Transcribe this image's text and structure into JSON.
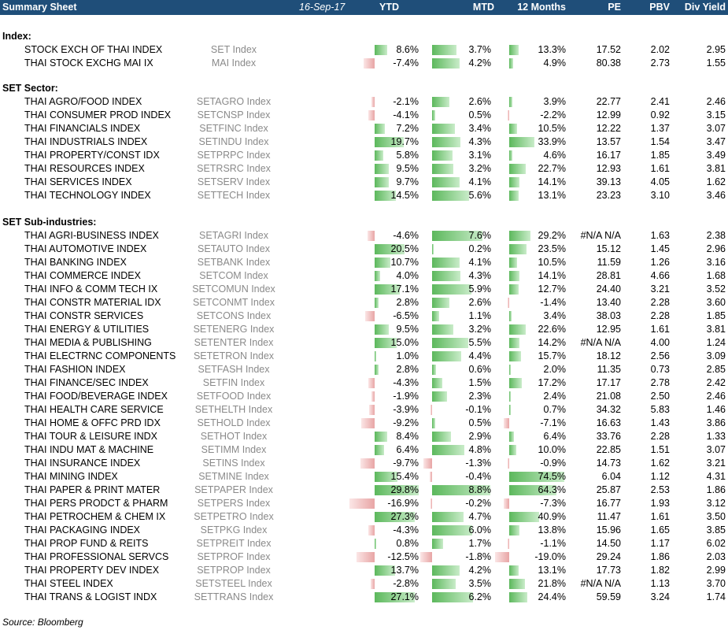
{
  "header": {
    "title": "Summary Sheet",
    "date": "16-Sep-17",
    "ytd": "YTD",
    "mtd": "MTD",
    "m12": "12 Months",
    "pe": "PE",
    "pbv": "PBV",
    "dy": "Div Yield"
  },
  "footer": "Source: Bloomberg",
  "sections": [
    {
      "label": "Index:",
      "rows": [
        {
          "name": "STOCK EXCH OF THAI INDEX",
          "code": "SET Index",
          "ytd": "8.6%",
          "mtd": "3.7%",
          "m12": "13.3%",
          "pe": "17.52",
          "pbv": "2.02",
          "dy": "2.95"
        },
        {
          "name": "THAI STOCK EXCHG MAI IX",
          "code": "MAI Index",
          "ytd": "-7.4%",
          "mtd": "4.2%",
          "m12": "4.9%",
          "pe": "80.38",
          "pbv": "2.73",
          "dy": "1.55"
        }
      ]
    },
    {
      "label": "SET Sector:",
      "rows": [
        {
          "name": "THAI AGRO/FOOD INDEX",
          "code": "SETAGRO Index",
          "ytd": "-2.1%",
          "mtd": "2.6%",
          "m12": "3.9%",
          "pe": "22.77",
          "pbv": "2.41",
          "dy": "2.46"
        },
        {
          "name": "THAI CONSUMER PROD INDEX",
          "code": "SETCNSP Index",
          "ytd": "-4.1%",
          "mtd": "0.5%",
          "m12": "-2.2%",
          "pe": "12.99",
          "pbv": "0.92",
          "dy": "3.15"
        },
        {
          "name": "THAI FINANCIALS INDEX",
          "code": "SETFINC Index",
          "ytd": "7.2%",
          "mtd": "3.4%",
          "m12": "10.5%",
          "pe": "12.22",
          "pbv": "1.37",
          "dy": "3.07"
        },
        {
          "name": "THAI INDUSTRIALS INDEX",
          "code": "SETINDU Index",
          "ytd": "19.7%",
          "mtd": "4.3%",
          "m12": "33.9%",
          "pe": "13.57",
          "pbv": "1.54",
          "dy": "3.47"
        },
        {
          "name": "THAI PROPERTY/CONST IDX",
          "code": "SETPRPC Index",
          "ytd": "5.8%",
          "mtd": "3.1%",
          "m12": "4.6%",
          "pe": "16.17",
          "pbv": "1.85",
          "dy": "3.49"
        },
        {
          "name": "THAI RESOURCES INDEX",
          "code": "SETRSRC Index",
          "ytd": "9.5%",
          "mtd": "3.2%",
          "m12": "22.7%",
          "pe": "12.93",
          "pbv": "1.61",
          "dy": "3.81"
        },
        {
          "name": "THAI SERVICES INDEX",
          "code": "SETSERV Index",
          "ytd": "9.7%",
          "mtd": "4.1%",
          "m12": "14.1%",
          "pe": "39.13",
          "pbv": "4.05",
          "dy": "1.62"
        },
        {
          "name": "THAI TECHNOLOGY INDEX",
          "code": "SETTECH Index",
          "ytd": "14.5%",
          "mtd": "5.6%",
          "m12": "13.1%",
          "pe": "23.23",
          "pbv": "3.10",
          "dy": "3.46"
        }
      ]
    },
    {
      "label": "SET Sub-industries:",
      "rows": [
        {
          "name": "THAI AGRI-BUSINESS INDEX",
          "code": "SETAGRI Index",
          "ytd": "-4.6%",
          "mtd": "7.6%",
          "m12": "29.2%",
          "pe": "#N/A N/A",
          "pbv": "1.63",
          "dy": "2.38"
        },
        {
          "name": "THAI AUTOMOTIVE INDEX",
          "code": "SETAUTO Index",
          "ytd": "20.5%",
          "mtd": "0.2%",
          "m12": "23.5%",
          "pe": "15.12",
          "pbv": "1.45",
          "dy": "2.96"
        },
        {
          "name": "THAI BANKING INDEX",
          "code": "SETBANK Index",
          "ytd": "10.7%",
          "mtd": "4.1%",
          "m12": "10.5%",
          "pe": "11.59",
          "pbv": "1.26",
          "dy": "3.16"
        },
        {
          "name": "THAI COMMERCE INDEX",
          "code": "SETCOM Index",
          "ytd": "4.0%",
          "mtd": "4.3%",
          "m12": "14.1%",
          "pe": "28.81",
          "pbv": "4.66",
          "dy": "1.68"
        },
        {
          "name": "THAI INFO & COMM TECH IX",
          "code": "SETCOMUN Index",
          "ytd": "17.1%",
          "mtd": "5.9%",
          "m12": "12.7%",
          "pe": "24.40",
          "pbv": "3.21",
          "dy": "3.52"
        },
        {
          "name": "THAI CONSTR MATERIAL IDX",
          "code": "SETCONMT Index",
          "ytd": "2.8%",
          "mtd": "2.6%",
          "m12": "-1.4%",
          "pe": "13.40",
          "pbv": "2.28",
          "dy": "3.60"
        },
        {
          "name": "THAI CONSTR SERVICES",
          "code": "SETCONS Index",
          "ytd": "-6.5%",
          "mtd": "1.1%",
          "m12": "3.4%",
          "pe": "38.03",
          "pbv": "2.28",
          "dy": "1.85"
        },
        {
          "name": "THAI ENERGY & UTILITIES",
          "code": "SETENERG Index",
          "ytd": "9.5%",
          "mtd": "3.2%",
          "m12": "22.6%",
          "pe": "12.95",
          "pbv": "1.61",
          "dy": "3.81"
        },
        {
          "name": "THAI MEDIA & PUBLISHING",
          "code": "SETENTER Index",
          "ytd": "15.0%",
          "mtd": "5.5%",
          "m12": "14.2%",
          "pe": "#N/A N/A",
          "pbv": "4.00",
          "dy": "1.24"
        },
        {
          "name": "THAI ELECTRNC COMPONENTS",
          "code": "SETETRON Index",
          "ytd": "1.0%",
          "mtd": "4.4%",
          "m12": "15.7%",
          "pe": "18.12",
          "pbv": "2.56",
          "dy": "3.09"
        },
        {
          "name": "THAI FASHION INDEX",
          "code": "SETFASH Index",
          "ytd": "2.8%",
          "mtd": "0.6%",
          "m12": "2.0%",
          "pe": "11.35",
          "pbv": "0.73",
          "dy": "2.85"
        },
        {
          "name": "THAI FINANCE/SEC INDEX",
          "code": "SETFIN Index",
          "ytd": "-4.3%",
          "mtd": "1.5%",
          "m12": "17.2%",
          "pe": "17.17",
          "pbv": "2.78",
          "dy": "2.42"
        },
        {
          "name": "THAI FOOD/BEVERAGE INDEX",
          "code": "SETFOOD Index",
          "ytd": "-1.9%",
          "mtd": "2.3%",
          "m12": "2.4%",
          "pe": "21.08",
          "pbv": "2.50",
          "dy": "2.46"
        },
        {
          "name": "THAI HEALTH CARE SERVICE",
          "code": "SETHELTH Index",
          "ytd": "-3.9%",
          "mtd": "-0.1%",
          "m12": "0.7%",
          "pe": "34.32",
          "pbv": "5.83",
          "dy": "1.46"
        },
        {
          "name": "THAI HOME & OFFC PRD IDX",
          "code": "SETHOLD Index",
          "ytd": "-9.2%",
          "mtd": "0.5%",
          "m12": "-7.1%",
          "pe": "16.63",
          "pbv": "1.43",
          "dy": "3.86"
        },
        {
          "name": "THAI TOUR & LEISURE INDX",
          "code": "SETHOT Index",
          "ytd": "8.4%",
          "mtd": "2.9%",
          "m12": "6.4%",
          "pe": "33.76",
          "pbv": "2.28",
          "dy": "1.33"
        },
        {
          "name": "THAI INDU MAT & MACHINE",
          "code": "SETIMM Index",
          "ytd": "6.4%",
          "mtd": "4.8%",
          "m12": "10.0%",
          "pe": "22.85",
          "pbv": "1.51",
          "dy": "3.07"
        },
        {
          "name": "THAI INSURANCE INDEX",
          "code": "SETINS Index",
          "ytd": "-9.7%",
          "mtd": "-1.3%",
          "m12": "-0.9%",
          "pe": "14.73",
          "pbv": "1.62",
          "dy": "3.21"
        },
        {
          "name": "THAI MINING INDEX",
          "code": "SETMINE Index",
          "ytd": "15.4%",
          "mtd": "-0.4%",
          "m12": "74.5%",
          "pe": "6.04",
          "pbv": "1.12",
          "dy": "4.31"
        },
        {
          "name": "THAI PAPER & PRINT MATER",
          "code": "SETPAPER Index",
          "ytd": "29.8%",
          "mtd": "8.8%",
          "m12": "64.3%",
          "pe": "25.87",
          "pbv": "2.53",
          "dy": "1.86"
        },
        {
          "name": "THAI PERS PRODCT & PHARM",
          "code": "SETPERS Index",
          "ytd": "-16.9%",
          "mtd": "-0.2%",
          "m12": "-7.3%",
          "pe": "16.77",
          "pbv": "1.93",
          "dy": "3.12"
        },
        {
          "name": "THAI PETROCHEM & CHEM IX",
          "code": "SETPETRO Index",
          "ytd": "27.3%",
          "mtd": "4.7%",
          "m12": "40.9%",
          "pe": "11.47",
          "pbv": "1.61",
          "dy": "3.50"
        },
        {
          "name": "THAI PACKAGING INDEX",
          "code": "SETPKG Index",
          "ytd": "-4.3%",
          "mtd": "6.0%",
          "m12": "13.8%",
          "pe": "15.96",
          "pbv": "1.65",
          "dy": "3.85"
        },
        {
          "name": "THAI PROP FUND & REITS",
          "code": "SETPREIT Index",
          "ytd": "0.8%",
          "mtd": "1.7%",
          "m12": "-1.1%",
          "pe": "14.50",
          "pbv": "1.17",
          "dy": "6.02"
        },
        {
          "name": "THAI PROFESSIONAL SERVCS",
          "code": "SETPROF Index",
          "ytd": "-12.5%",
          "mtd": "-1.8%",
          "m12": "-19.0%",
          "pe": "29.24",
          "pbv": "1.86",
          "dy": "2.03"
        },
        {
          "name": "THAI PROPERTY DEV INDEX",
          "code": "SETPROP Index",
          "ytd": "13.7%",
          "mtd": "4.2%",
          "m12": "13.1%",
          "pe": "17.73",
          "pbv": "1.82",
          "dy": "2.99"
        },
        {
          "name": "THAI STEEL INDEX",
          "code": "SETSTEEL Index",
          "ytd": "-2.8%",
          "mtd": "3.5%",
          "m12": "21.8%",
          "pe": "#N/A N/A",
          "pbv": "1.13",
          "dy": "3.70"
        },
        {
          "name": "THAI TRANS & LOGIST INDX",
          "code": "SETTRANS Index",
          "ytd": "27.1%",
          "mtd": "6.2%",
          "m12": "24.4%",
          "pe": "59.59",
          "pbv": "3.24",
          "dy": "1.74"
        }
      ]
    }
  ]
}
